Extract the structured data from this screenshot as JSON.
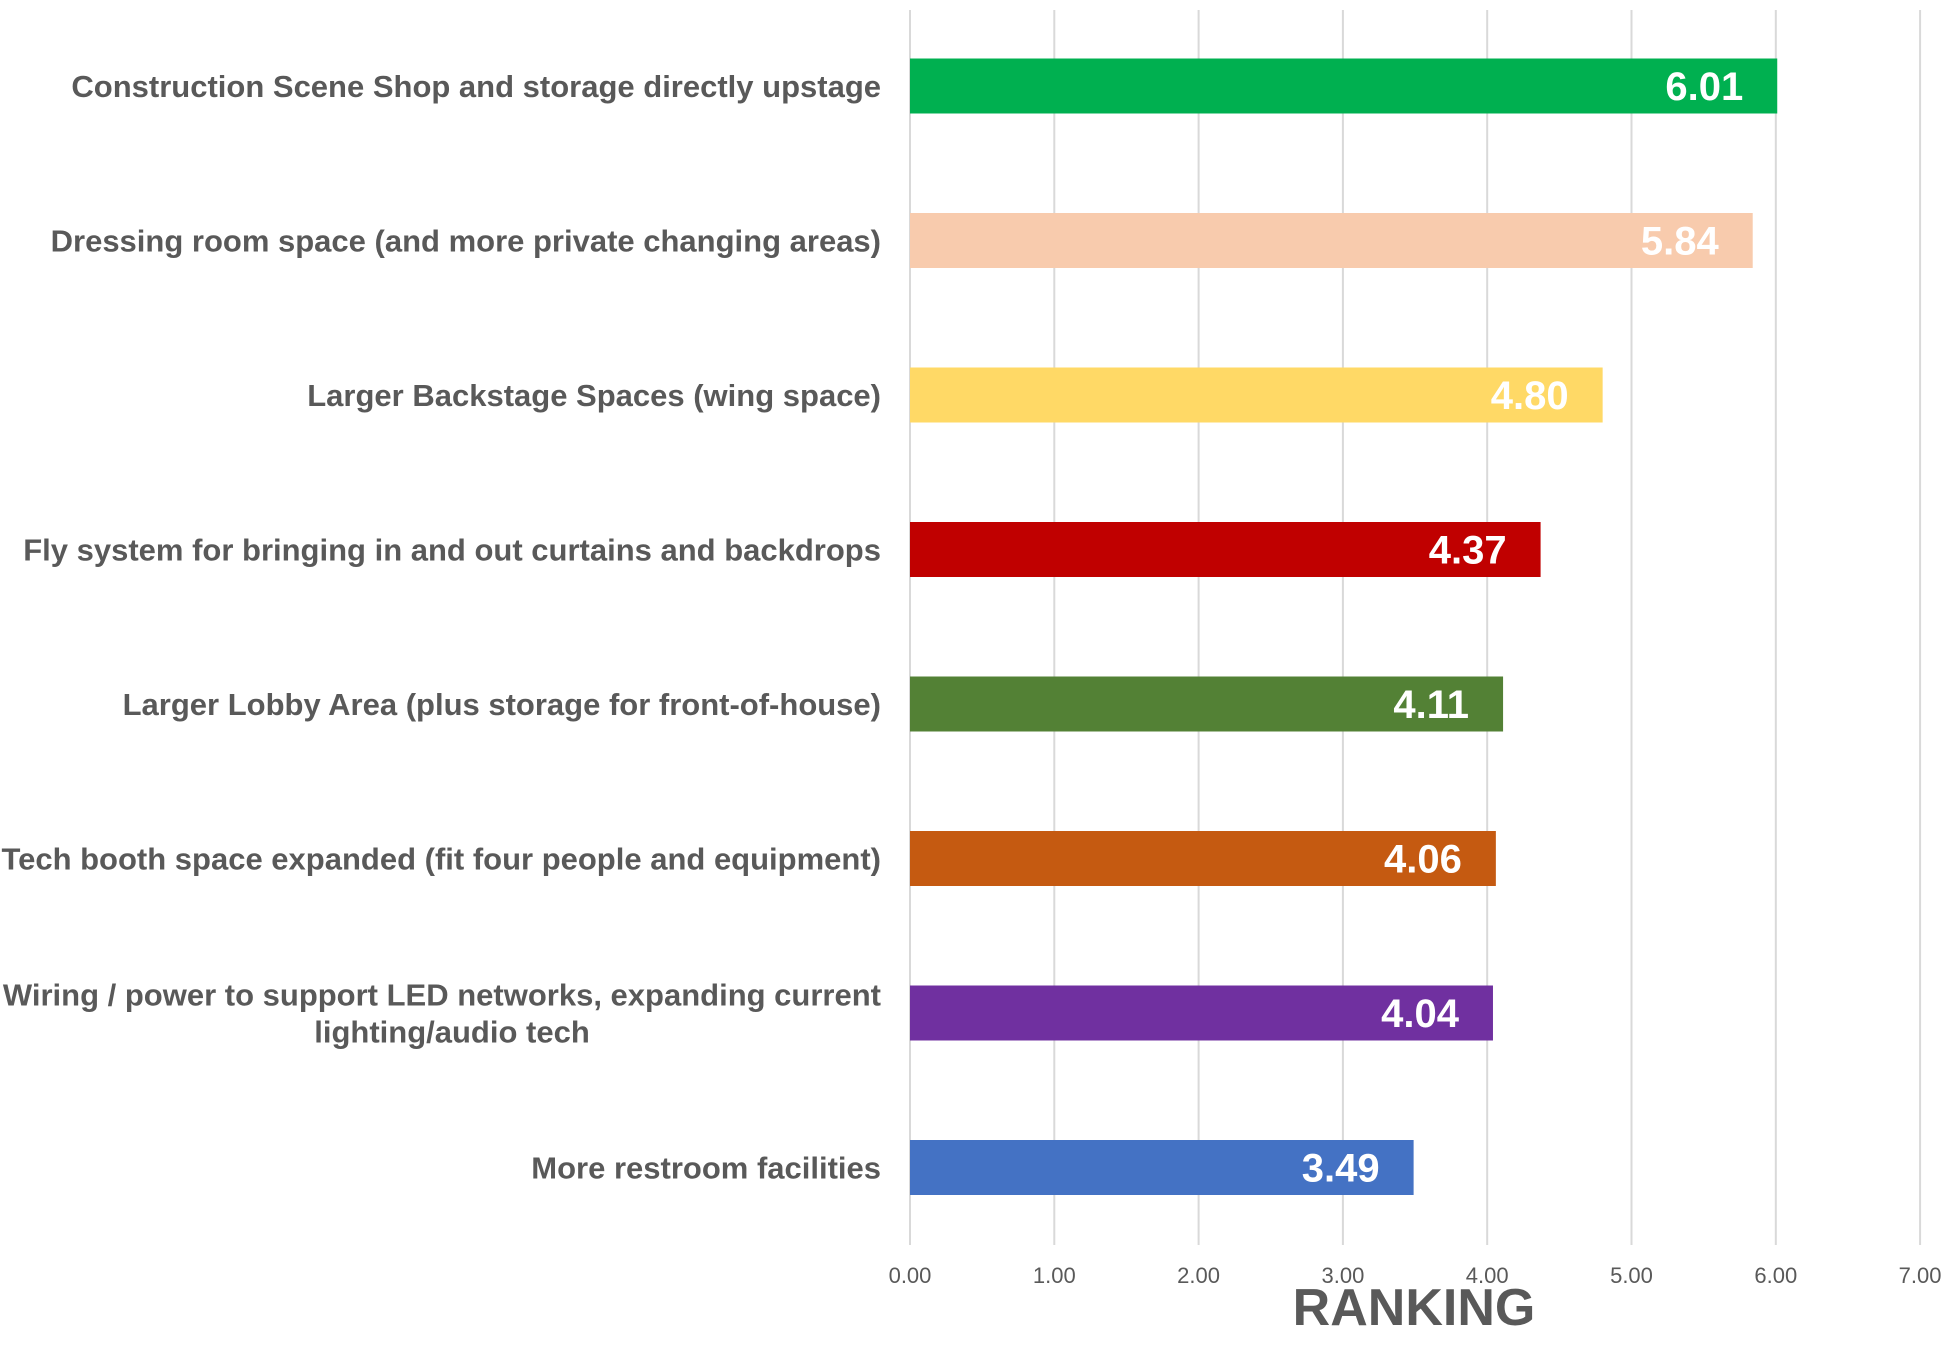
{
  "chart_data": {
    "type": "bar",
    "orientation": "horizontal",
    "title": "",
    "xlabel": "RANKING",
    "ylabel": "",
    "xlim": [
      0,
      7
    ],
    "ticks": [
      "0.00",
      "1.00",
      "2.00",
      "3.00",
      "4.00",
      "5.00",
      "6.00",
      "7.00"
    ],
    "tick_values": [
      0,
      1,
      2,
      3,
      4,
      5,
      6,
      7
    ],
    "grid": true,
    "legend": "none",
    "categories": [
      [
        "Construction Scene Shop and storage directly upstage"
      ],
      [
        "Dressing room space (and more private changing areas)"
      ],
      [
        "Larger Backstage Spaces (wing space)"
      ],
      [
        "Fly system for bringing in and out curtains and backdrops"
      ],
      [
        "Larger Lobby Area (plus storage for front-of-house)"
      ],
      [
        "Tech booth space expanded (fit four people and equipment)"
      ],
      [
        "Wiring / power to support LED networks, expanding current",
        "lighting/audio tech"
      ],
      [
        "More restroom facilities"
      ]
    ],
    "values": [
      6.01,
      5.84,
      4.8,
      4.37,
      4.11,
      4.06,
      4.04,
      3.49
    ],
    "value_labels": [
      "6.01",
      "5.84",
      "4.80",
      "4.37",
      "4.11",
      "4.06",
      "4.04",
      "3.49"
    ],
    "colors": [
      "#00b050",
      "#f8cbad",
      "#ffd966",
      "#c00000",
      "#538135",
      "#c55a11",
      "#7030a0",
      "#4472c4"
    ]
  }
}
